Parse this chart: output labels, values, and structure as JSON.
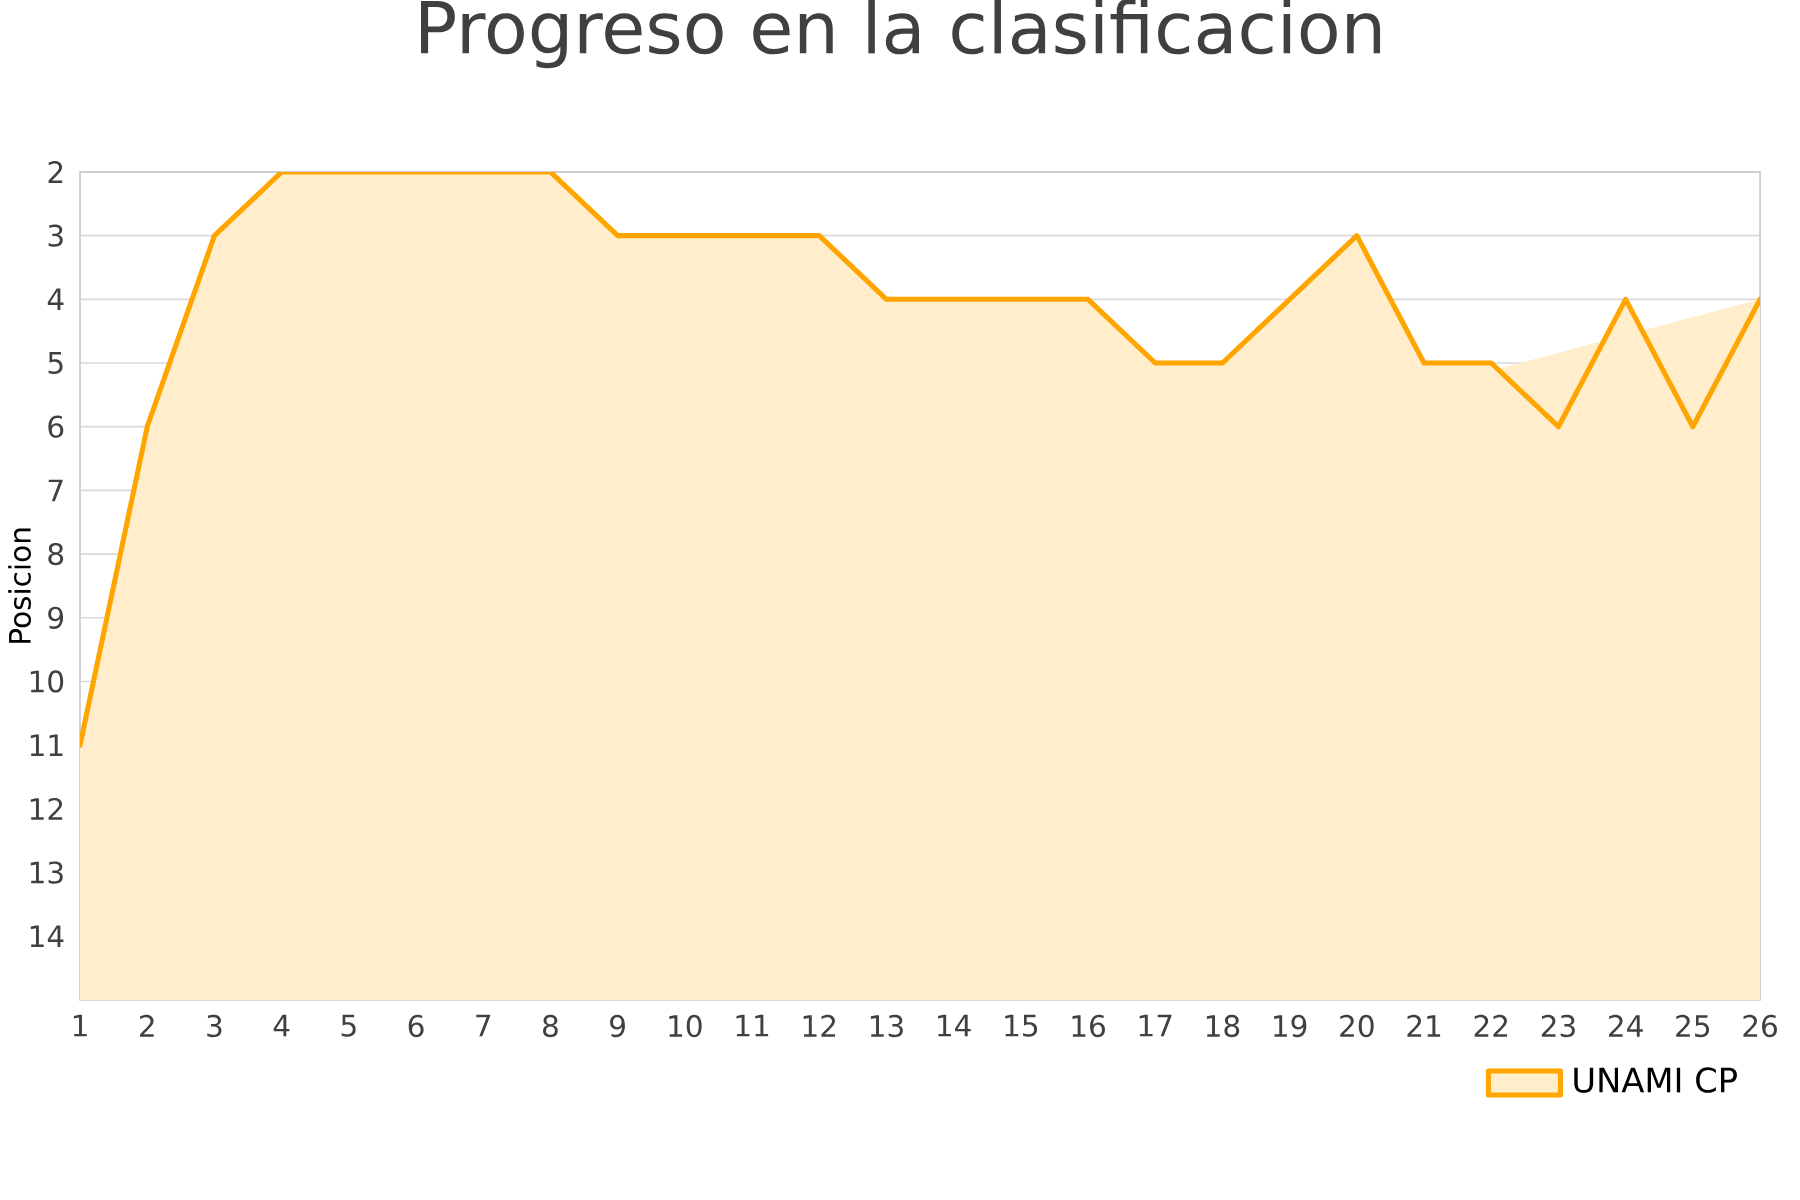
{
  "chart_data": {
    "type": "area",
    "title": "Progreso en la clasificacion",
    "ylabel": "Posicion",
    "x": [
      1,
      2,
      3,
      4,
      5,
      6,
      7,
      8,
      9,
      10,
      11,
      12,
      13,
      14,
      15,
      16,
      17,
      18,
      19,
      20,
      21,
      22,
      23,
      24,
      25,
      26
    ],
    "series": [
      {
        "name": "UNAMI CP",
        "color": "#ffa500",
        "values": [
          11,
          6,
          3,
          2,
          2,
          2,
          2,
          2,
          3,
          3,
          3,
          3,
          4,
          4,
          4,
          4,
          5,
          5,
          4,
          3,
          5,
          5,
          6,
          4,
          6,
          4
        ]
      }
    ],
    "xlim": [
      1,
      26
    ],
    "xticks": [
      1,
      2,
      3,
      4,
      5,
      6,
      7,
      8,
      9,
      10,
      11,
      12,
      13,
      14,
      15,
      16,
      17,
      18,
      19,
      20,
      21,
      22,
      23,
      24,
      25,
      26
    ],
    "ylim": [
      15,
      2
    ],
    "yticks": [
      2,
      3,
      4,
      5,
      6,
      7,
      8,
      9,
      10,
      11,
      12,
      13,
      14
    ],
    "grid": "y",
    "legend": "bottom right"
  }
}
